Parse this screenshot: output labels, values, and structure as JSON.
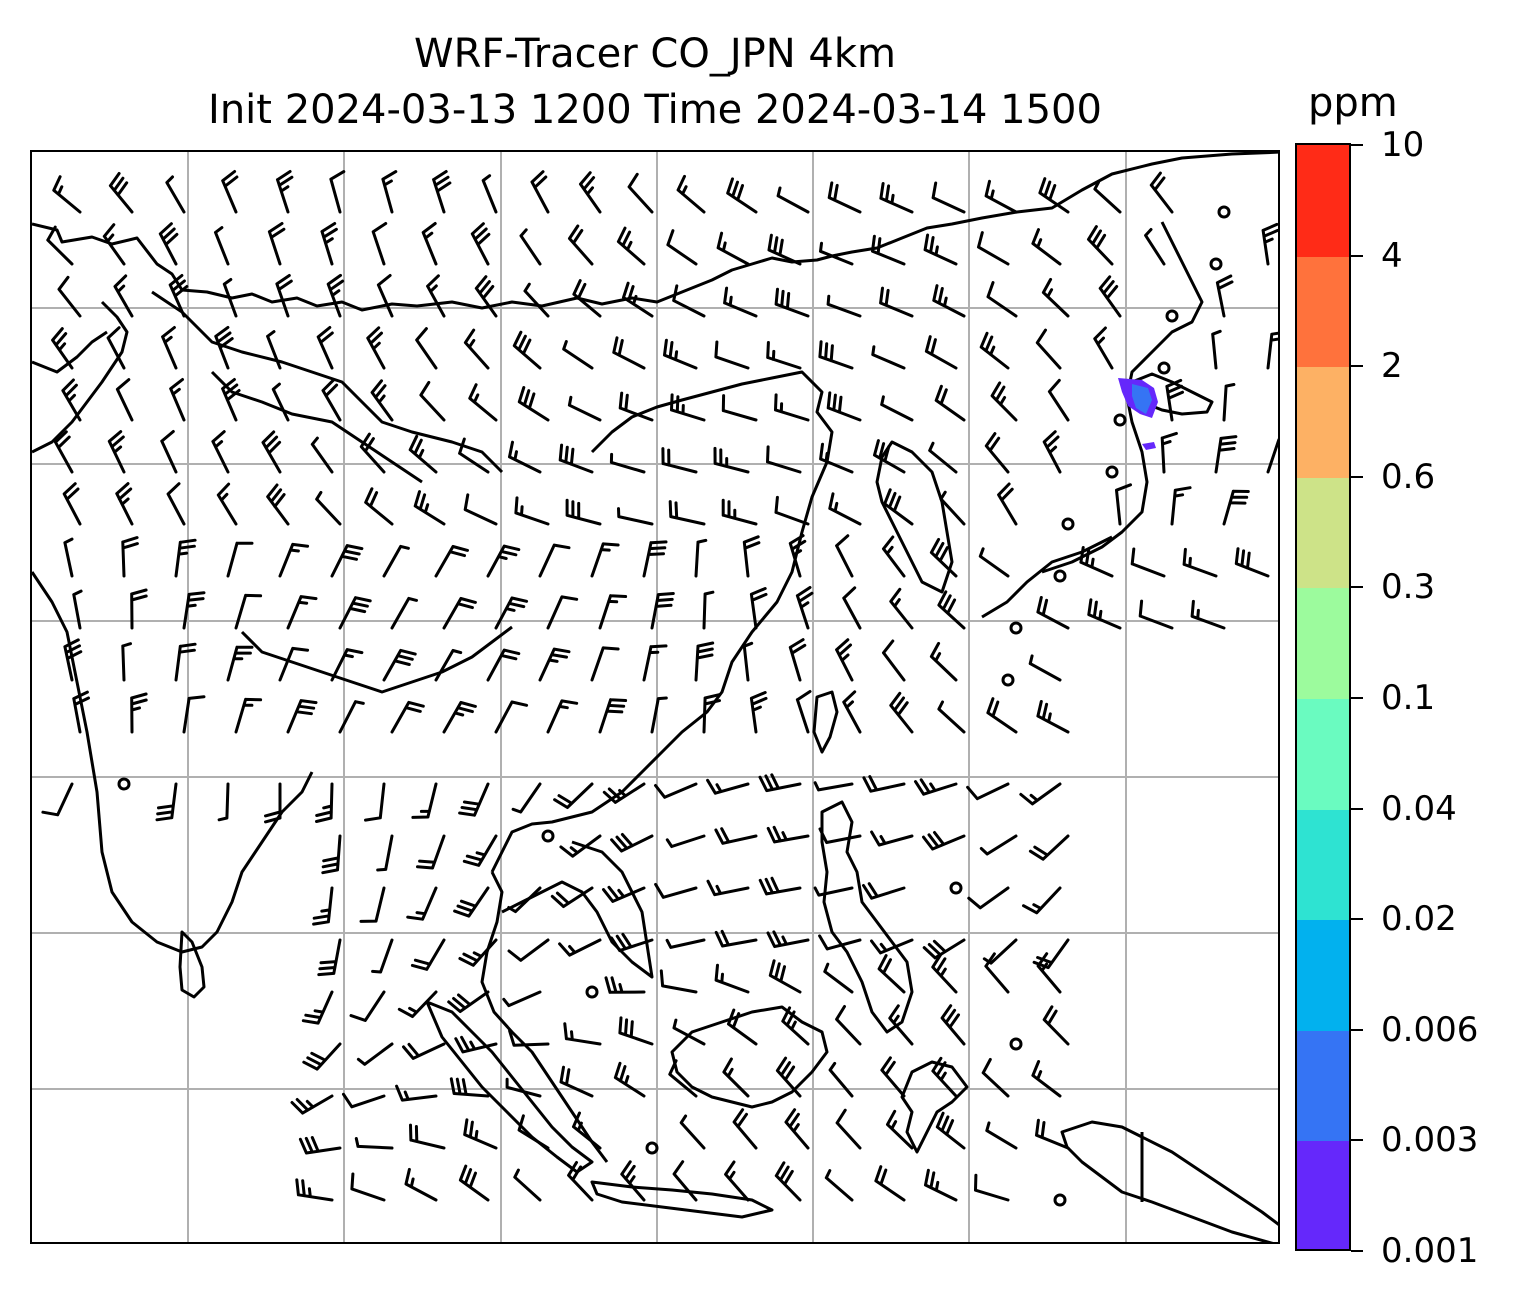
{
  "title": {
    "line1": "WRF-Tracer CO_JPN 4km",
    "line2": "Init 2024-03-13 1200 Time 2024-03-14 1500"
  },
  "colorbar": {
    "unit": "ppm",
    "levels": [
      {
        "label": "0.001",
        "color": "#6528fb"
      },
      {
        "label": "0.003",
        "color": "#3574f4"
      },
      {
        "label": "0.006",
        "color": "#02b1ee"
      },
      {
        "label": "0.02",
        "color": "#2ee3d2"
      },
      {
        "label": "0.04",
        "color": "#6afbc0"
      },
      {
        "label": "0.1",
        "color": "#9cfb9d"
      },
      {
        "label": "0.3",
        "color": "#cde388"
      },
      {
        "label": "0.6",
        "color": "#fdb164"
      },
      {
        "label": "2",
        "color": "#ff723c"
      },
      {
        "label": "4",
        "color": "#ff2b17"
      },
      {
        "label": "10",
        "color": null
      }
    ]
  },
  "map": {
    "grid": true,
    "overlay": "wind barbs",
    "tracer_plume": {
      "region": "northern Japan (Hokkaido / Tsugaru Strait)",
      "max_ppm": 0.006,
      "min_ppm": 0.001
    }
  }
}
